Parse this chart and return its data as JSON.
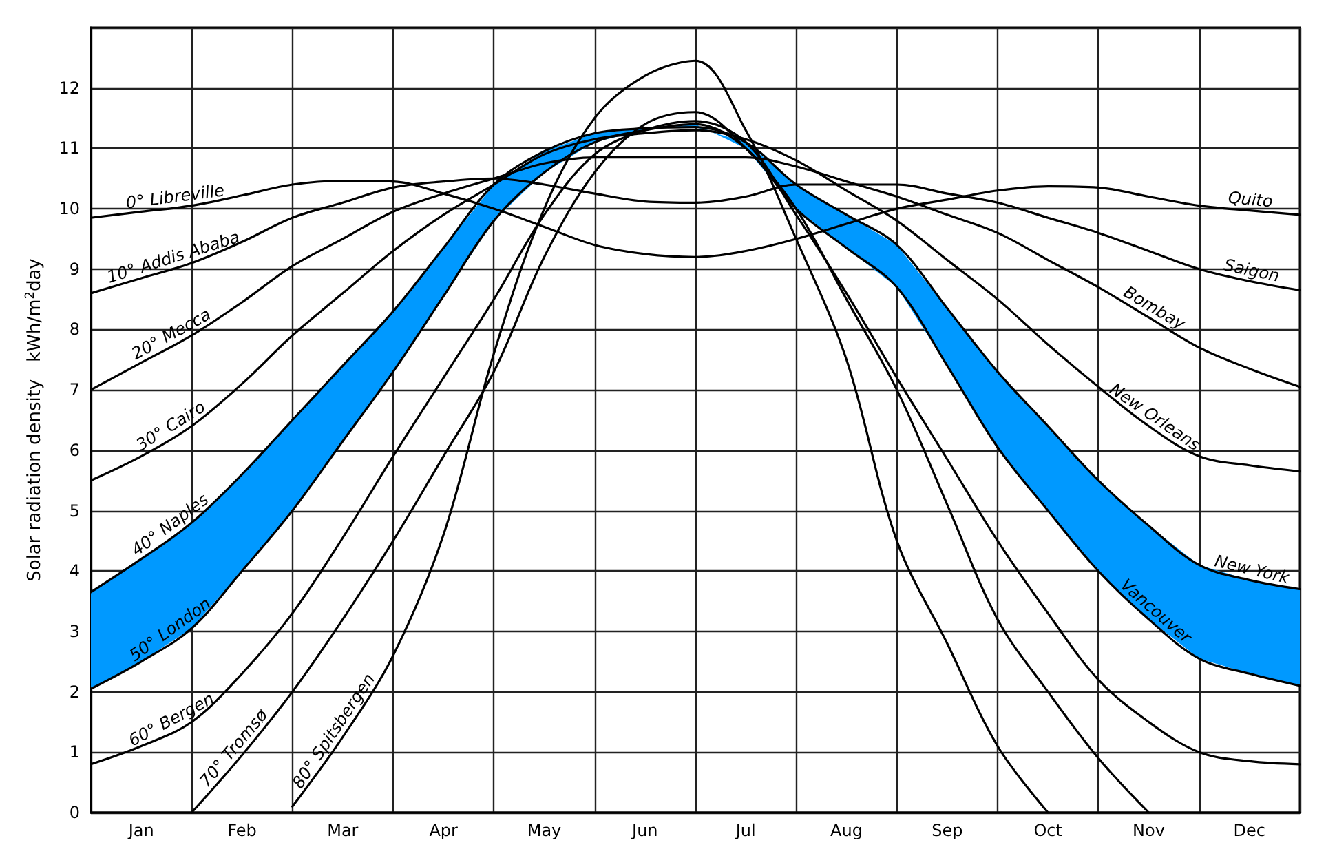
{
  "chart_data": {
    "type": "line",
    "ylabel": "Solar radiation density   kWh/m$^{2}$day",
    "categories": [
      null,
      "Jan",
      null,
      "Feb",
      null,
      "Mar",
      null,
      "Apr",
      null,
      "May",
      null,
      "Jun",
      null,
      "Jul",
      null,
      "Aug",
      null,
      "Sep",
      null,
      "Oct",
      null,
      "Nov",
      null,
      "Dec",
      null
    ],
    "ylim": [
      0,
      13
    ],
    "yticks": [
      0,
      1,
      2,
      3,
      4,
      5,
      6,
      7,
      8,
      9,
      10,
      11,
      12
    ],
    "grid": true,
    "legend": false,
    "marker": "none",
    "line_style": "solid",
    "series": [
      {
        "name": "0° Libreville",
        "color": "#000000",
        "values": [
          9.85,
          9.95,
          10.05,
          10.22,
          10.4,
          10.46,
          10.45,
          10.25,
          10.0,
          9.7,
          9.4,
          9.25,
          9.2,
          9.3,
          9.5,
          9.75,
          10.0,
          10.15,
          10.3,
          10.37,
          10.35,
          10.2,
          10.05,
          9.97,
          9.9
        ]
      },
      {
        "name": "10° Addis Ababa",
        "color": "#000000",
        "values": [
          8.6,
          8.85,
          9.1,
          9.45,
          9.85,
          10.1,
          10.35,
          10.45,
          10.5,
          10.4,
          10.25,
          10.12,
          10.1,
          10.2,
          10.4,
          10.4,
          10.4,
          10.25,
          10.1,
          9.85,
          9.6,
          9.3,
          9.0,
          8.8,
          8.65
        ]
      },
      {
        "name": "20° Mecca",
        "color": "#000000",
        "values": [
          7.0,
          7.45,
          7.9,
          8.45,
          9.05,
          9.5,
          9.95,
          10.25,
          10.5,
          10.75,
          10.85,
          10.85,
          10.85,
          10.85,
          10.7,
          10.45,
          10.2,
          9.9,
          9.6,
          9.15,
          8.7,
          8.2,
          7.7,
          7.35,
          7.05
        ]
      },
      {
        "name": "30° Cairo",
        "color": "#000000",
        "values": [
          5.5,
          5.9,
          6.4,
          7.1,
          7.9,
          8.6,
          9.3,
          9.9,
          10.4,
          10.9,
          11.15,
          11.25,
          11.3,
          11.15,
          10.8,
          10.3,
          9.8,
          9.15,
          8.5,
          7.75,
          7.05,
          6.4,
          5.9,
          5.75,
          5.65
        ]
      },
      {
        "name": "40° Naples",
        "color": "#000000",
        "values": [
          3.65,
          4.2,
          4.8,
          5.6,
          6.5,
          7.4,
          8.3,
          9.35,
          10.4,
          10.95,
          11.25,
          11.33,
          11.35,
          11.1,
          10.4,
          9.9,
          9.4,
          8.35,
          7.3,
          6.4,
          5.5,
          4.75,
          4.1,
          3.85,
          3.7
        ],
        "lower": [
          2.05,
          2.5,
          3.05,
          4.0,
          5.0,
          6.15,
          7.3,
          8.55,
          9.8,
          10.6,
          11.1,
          11.3,
          11.4,
          11.0,
          10.0,
          9.35,
          8.7,
          7.4,
          6.05,
          5.0,
          4.0,
          3.2,
          2.55,
          2.3,
          2.1
        ],
        "upper": [
          3.65,
          4.2,
          4.8,
          5.6,
          6.5,
          7.4,
          8.3,
          9.35,
          10.4,
          10.95,
          11.25,
          11.33,
          11.35,
          11.1,
          10.4,
          9.9,
          9.4,
          8.35,
          7.3,
          6.4,
          5.5,
          4.75,
          4.1,
          3.85,
          3.7
        ]
      },
      {
        "name": "50° London",
        "color": "#000000",
        "values": [
          2.05,
          2.5,
          3.05,
          4.0,
          5.0,
          6.15,
          7.3,
          8.55,
          9.8,
          10.6,
          11.1,
          11.3,
          11.4,
          11.0,
          10.0,
          9.35,
          8.7,
          7.4,
          6.05,
          5.0,
          4.0,
          3.2,
          2.55,
          2.3,
          2.1
        ]
      },
      {
        "name": "60° Bergen",
        "color": "#000000",
        "values": [
          0.8,
          1.1,
          1.5,
          2.3,
          3.3,
          4.55,
          5.9,
          7.2,
          8.5,
          9.9,
          10.9,
          11.3,
          11.45,
          11.1,
          9.9,
          8.6,
          7.2,
          5.85,
          4.5,
          3.3,
          2.2,
          1.5,
          1.0,
          0.85,
          0.8
        ]
      },
      {
        "name": "70° Tromsø",
        "color": "#000000",
        "values": [
          null,
          null,
          0,
          0.95,
          2.0,
          3.2,
          4.5,
          5.9,
          7.3,
          9.2,
          10.6,
          11.4,
          11.6,
          11.0,
          10.0,
          8.5,
          7.0,
          5.1,
          3.2,
          2.0,
          0.9,
          0,
          null,
          null,
          null
        ]
      },
      {
        "name": "80° Spitsbergen",
        "color": "#000000",
        "values": [
          null,
          null,
          null,
          null,
          0.1,
          1.25,
          2.6,
          4.6,
          7.6,
          10.0,
          11.5,
          12.2,
          12.45,
          11.3,
          9.5,
          7.5,
          4.5,
          2.8,
          1.1,
          0,
          null,
          null,
          null,
          null,
          null
        ]
      }
    ],
    "annotations": [
      {
        "text": "Quito",
        "x": "Dec",
        "y": 9.97
      },
      {
        "text": "Saigon",
        "x": "Dec",
        "y": 8.8
      },
      {
        "text": "Bombay",
        "x": "Nov",
        "y": 8.2
      },
      {
        "text": "New Orleans",
        "x": "Nov",
        "y": 6.4
      },
      {
        "text": "New York",
        "x": "Dec",
        "y": 3.85
      },
      {
        "text": "Vancouver",
        "x": "Nov",
        "y": 3.2
      }
    ]
  }
}
